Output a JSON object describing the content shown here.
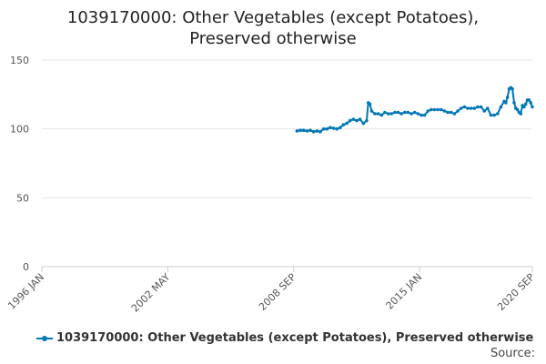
{
  "chart_data": {
    "type": "line",
    "title_lines": [
      "1039170000: Other Vegetables (except Potatoes),",
      "Preserved otherwise"
    ],
    "xlabel": "",
    "ylabel": "",
    "xlim": [
      "1996-01",
      "2020-09"
    ],
    "ylim": [
      0,
      150
    ],
    "yticks": [
      0,
      50,
      100,
      150
    ],
    "xticks": [
      "1996 JAN",
      "2002 MAY",
      "2008 SEP",
      "2015 JAN",
      "2020 SEP"
    ],
    "grid": "horizontal",
    "legend_position": "bottom",
    "series": [
      {
        "name": "1039170000: Other Vegetables (except Potatoes), Preserved otherwise",
        "color": "#0077b6",
        "points": [
          [
            "2008-11",
            98.5
          ],
          [
            "2009-01",
            99
          ],
          [
            "2009-03",
            99
          ],
          [
            "2009-05",
            98.5
          ],
          [
            "2009-07",
            99
          ],
          [
            "2009-09",
            98
          ],
          [
            "2009-11",
            98.5
          ],
          [
            "2010-01",
            98
          ],
          [
            "2010-03",
            100
          ],
          [
            "2010-05",
            100
          ],
          [
            "2010-07",
            101
          ],
          [
            "2010-09",
            100.5
          ],
          [
            "2010-11",
            100
          ],
          [
            "2011-01",
            101
          ],
          [
            "2011-03",
            103
          ],
          [
            "2011-05",
            104
          ],
          [
            "2011-07",
            106
          ],
          [
            "2011-09",
            107
          ],
          [
            "2011-11",
            106
          ],
          [
            "2012-01",
            107
          ],
          [
            "2012-03",
            104
          ],
          [
            "2012-05",
            106
          ],
          [
            "2012-06",
            119
          ],
          [
            "2012-07",
            118
          ],
          [
            "2012-08",
            113
          ],
          [
            "2012-10",
            111
          ],
          [
            "2012-12",
            111
          ],
          [
            "2013-02",
            110
          ],
          [
            "2013-04",
            112
          ],
          [
            "2013-06",
            111
          ],
          [
            "2013-08",
            111
          ],
          [
            "2013-10",
            112
          ],
          [
            "2013-12",
            112
          ],
          [
            "2014-02",
            111
          ],
          [
            "2014-04",
            112
          ],
          [
            "2014-06",
            112
          ],
          [
            "2014-08",
            111
          ],
          [
            "2014-10",
            112
          ],
          [
            "2014-12",
            111
          ],
          [
            "2015-02",
            110
          ],
          [
            "2015-04",
            110
          ],
          [
            "2015-06",
            113
          ],
          [
            "2015-08",
            114
          ],
          [
            "2015-10",
            114
          ],
          [
            "2015-12",
            114
          ],
          [
            "2016-02",
            114
          ],
          [
            "2016-04",
            113
          ],
          [
            "2016-06",
            112
          ],
          [
            "2016-08",
            112
          ],
          [
            "2016-10",
            111
          ],
          [
            "2016-12",
            113
          ],
          [
            "2017-02",
            115
          ],
          [
            "2017-04",
            116
          ],
          [
            "2017-06",
            115
          ],
          [
            "2017-08",
            115
          ],
          [
            "2017-10",
            115
          ],
          [
            "2017-12",
            116
          ],
          [
            "2018-02",
            116
          ],
          [
            "2018-04",
            113
          ],
          [
            "2018-06",
            115
          ],
          [
            "2018-08",
            110
          ],
          [
            "2018-10",
            110
          ],
          [
            "2018-12",
            111
          ],
          [
            "2019-02",
            116
          ],
          [
            "2019-04",
            120
          ],
          [
            "2019-05",
            119
          ],
          [
            "2019-06",
            123
          ],
          [
            "2019-07",
            129
          ],
          [
            "2019-08",
            130
          ],
          [
            "2019-09",
            129
          ],
          [
            "2019-10",
            119
          ],
          [
            "2019-11",
            115
          ],
          [
            "2019-12",
            114
          ],
          [
            "2020-01",
            112
          ],
          [
            "2020-02",
            111
          ],
          [
            "2020-03",
            117
          ],
          [
            "2020-04",
            116
          ],
          [
            "2020-05",
            118
          ],
          [
            "2020-06",
            121
          ],
          [
            "2020-07",
            121
          ],
          [
            "2020-08",
            119
          ],
          [
            "2020-09",
            116
          ]
        ]
      }
    ],
    "source_label": "Source:"
  }
}
